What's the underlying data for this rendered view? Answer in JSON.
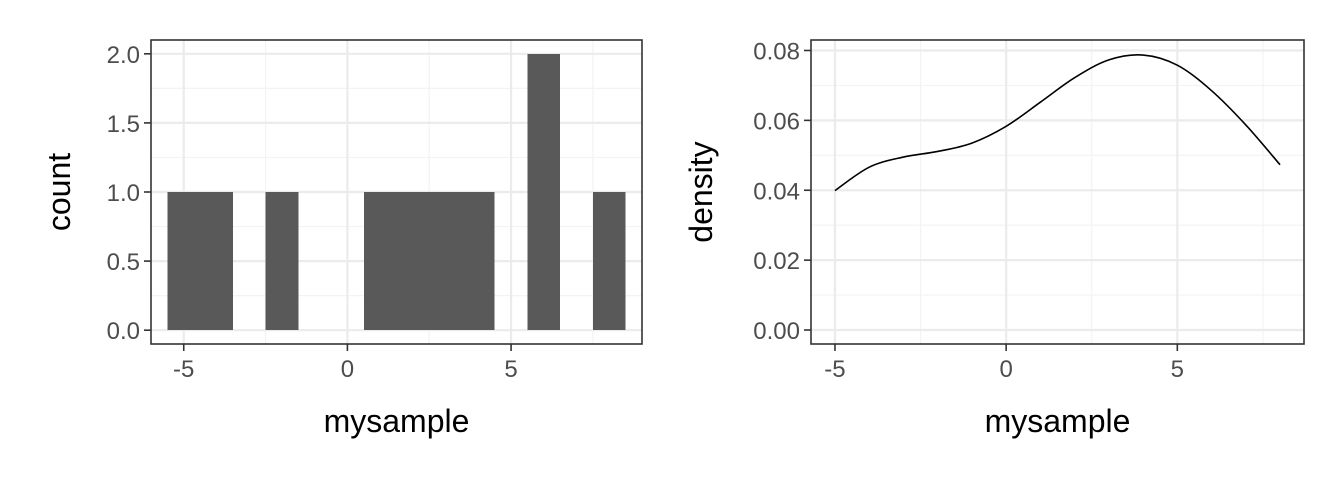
{
  "chart_data": [
    {
      "type": "bar",
      "subtype": "histogram",
      "title": "",
      "xlabel": "mysample",
      "ylabel": "count",
      "xlim": [
        -6,
        9
      ],
      "ylim": [
        -0.1,
        2.1
      ],
      "grid": true,
      "legend": "none",
      "bar_color": "#595959",
      "x_ticks": [
        -5,
        0,
        5
      ],
      "x_tick_labels": [
        "-5",
        "0",
        "5"
      ],
      "y_ticks": [
        0,
        0.5,
        1,
        1.5,
        2
      ],
      "y_tick_labels": [
        "0.0",
        "0.5",
        "1.0",
        "1.5",
        "2.0"
      ],
      "bins": [
        {
          "x0": -5.5,
          "x1": -4.5,
          "count": 1
        },
        {
          "x0": -4.5,
          "x1": -3.5,
          "count": 1
        },
        {
          "x0": -2.5,
          "x1": -1.5,
          "count": 1
        },
        {
          "x0": 0.5,
          "x1": 1.5,
          "count": 1
        },
        {
          "x0": 1.5,
          "x1": 2.5,
          "count": 1
        },
        {
          "x0": 2.5,
          "x1": 3.5,
          "count": 1
        },
        {
          "x0": 3.5,
          "x1": 4.5,
          "count": 1
        },
        {
          "x0": 5.5,
          "x1": 6.5,
          "count": 2
        },
        {
          "x0": 7.5,
          "x1": 8.5,
          "count": 1
        }
      ]
    },
    {
      "type": "line",
      "subtype": "density",
      "title": "",
      "xlabel": "mysample",
      "ylabel": "density",
      "xlim": [
        -5.7,
        8.7
      ],
      "ylim": [
        -0.004,
        0.083
      ],
      "grid": true,
      "legend": "none",
      "line_color": "#000000",
      "x_ticks": [
        -5,
        0,
        5
      ],
      "x_tick_labels": [
        "-5",
        "0",
        "5"
      ],
      "y_ticks": [
        0,
        0.02,
        0.04,
        0.06,
        0.08
      ],
      "y_tick_labels": [
        "0.00",
        "0.02",
        "0.04",
        "0.06",
        "0.08"
      ],
      "x": [
        -5,
        -4,
        -3,
        -2,
        -1,
        0,
        1,
        2,
        3,
        4,
        5,
        6,
        7,
        8
      ],
      "y": [
        0.0399,
        0.0466,
        0.0495,
        0.0511,
        0.0535,
        0.0583,
        0.0652,
        0.0722,
        0.0773,
        0.0787,
        0.0758,
        0.0685,
        0.0587,
        0.0473
      ]
    }
  ]
}
